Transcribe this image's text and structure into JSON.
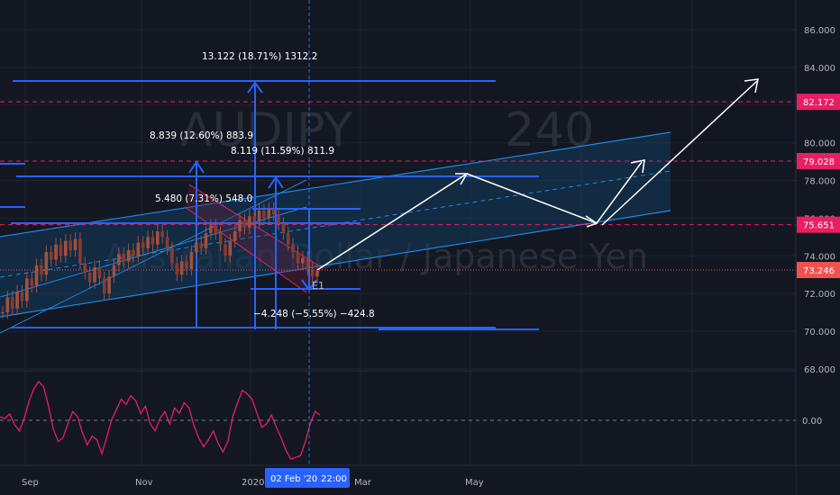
{
  "symbol": "AUDJPY",
  "interval": "240",
  "description": "Australian Dollar / Japanese Yen",
  "colors": {
    "background": "#131722",
    "grid": "#1f2430",
    "candle": "#8b3a2f",
    "candle_light": "#a0523f",
    "drawing_blue": "#2962ff",
    "line_blue": "#1e88e5",
    "channel_fill": "#123a5c",
    "arrow": "#ffffff",
    "level_red": "#e91e63",
    "osc": "#e91e63",
    "crosshair": "#2a6fdb",
    "axis_text": "#b2b5be",
    "badge_text": "#ffffff",
    "last_price": "#ef5350"
  },
  "chart_data": [
    {
      "type": "candlestick",
      "title": "AUDJPY 240",
      "ylim": [
        67.2,
        88
      ],
      "y_ticks": [
        "86.000",
        "84.000",
        "82.000",
        "80.000",
        "78.000",
        "76.000",
        "74.000",
        "72.000",
        "70.000",
        "68.000"
      ],
      "x_ticks": [
        "Sep",
        "Nov",
        "2020",
        "Mar",
        "May"
      ],
      "crosshair_date": "02 Feb '20",
      "crosshair_time": "22:00",
      "price_levels": [
        {
          "label": "82.172",
          "value": 82.172,
          "color": "#e91e63"
        },
        {
          "label": "79.028",
          "value": 79.028,
          "color": "#e91e63"
        },
        {
          "label": "75.651",
          "value": 75.651,
          "color": "#e91e63"
        },
        {
          "label": "73.246",
          "value": 73.246,
          "color": "#ef5350"
        }
      ],
      "measurements": [
        {
          "label": "13.122 (18.71%) 1312.2"
        },
        {
          "label": "8.839 (12.60%) 883.9"
        },
        {
          "label": "8.119 (11.59%) 811.9"
        },
        {
          "label": "5.480 (7.31%) 548.0"
        },
        {
          "label": "−4.248 (−5.55%) −424.8"
        }
      ],
      "annotations": [
        {
          "label": "E1"
        }
      ],
      "series": [
        {
          "values": [
            71.0,
            71.8,
            71.2,
            72.1,
            71.6,
            72.8,
            72.4,
            73.5,
            73.0,
            74.2,
            73.8,
            74.6,
            74.0,
            74.8,
            74.3,
            74.9,
            73.6,
            73.1,
            72.6,
            73.4,
            72.8,
            72.0,
            72.9,
            73.5,
            74.1,
            73.7,
            74.3,
            74.0,
            74.7,
            74.4,
            75.0,
            74.6,
            75.3,
            75.0,
            74.4,
            73.6,
            73.0,
            73.7,
            73.3,
            74.2,
            74.7,
            74.4,
            75.2,
            75.6,
            75.2,
            74.6,
            74.0,
            74.8,
            75.3,
            75.9,
            75.5,
            76.1,
            75.8,
            76.4,
            76.0,
            76.5,
            76.2,
            75.7,
            75.2,
            74.6,
            74.2,
            73.6,
            73.9,
            73.3,
            72.9,
            73.2
          ]
        }
      ]
    },
    {
      "type": "line",
      "ylim": [
        -1.25,
        1.25
      ],
      "y_ticks": [
        "0.00"
      ],
      "series": [
        {
          "values": [
            0.1,
            0.05,
            0.18,
            -0.12,
            -0.3,
            0.05,
            0.55,
            0.9,
            1.1,
            0.95,
            0.4,
            -0.25,
            -0.6,
            -0.5,
            -0.1,
            0.25,
            0.1,
            -0.35,
            -0.7,
            -0.45,
            -0.55,
            -0.95,
            -0.5,
            0.0,
            0.3,
            0.6,
            0.45,
            0.7,
            0.55,
            0.2,
            0.4,
            -0.1,
            -0.3,
            0.05,
            0.25,
            -0.1,
            0.35,
            0.2,
            0.5,
            0.35,
            -0.15,
            -0.5,
            -0.75,
            -0.55,
            -0.3,
            -0.65,
            -0.9,
            -0.6,
            0.1,
            0.5,
            0.85,
            0.75,
            0.6,
            0.2,
            -0.2,
            -0.1,
            0.15,
            -0.2,
            -0.5,
            -0.85,
            -1.1,
            -1.05,
            -1.0,
            -0.6,
            -0.1,
            0.25,
            0.15
          ]
        }
      ]
    }
  ]
}
